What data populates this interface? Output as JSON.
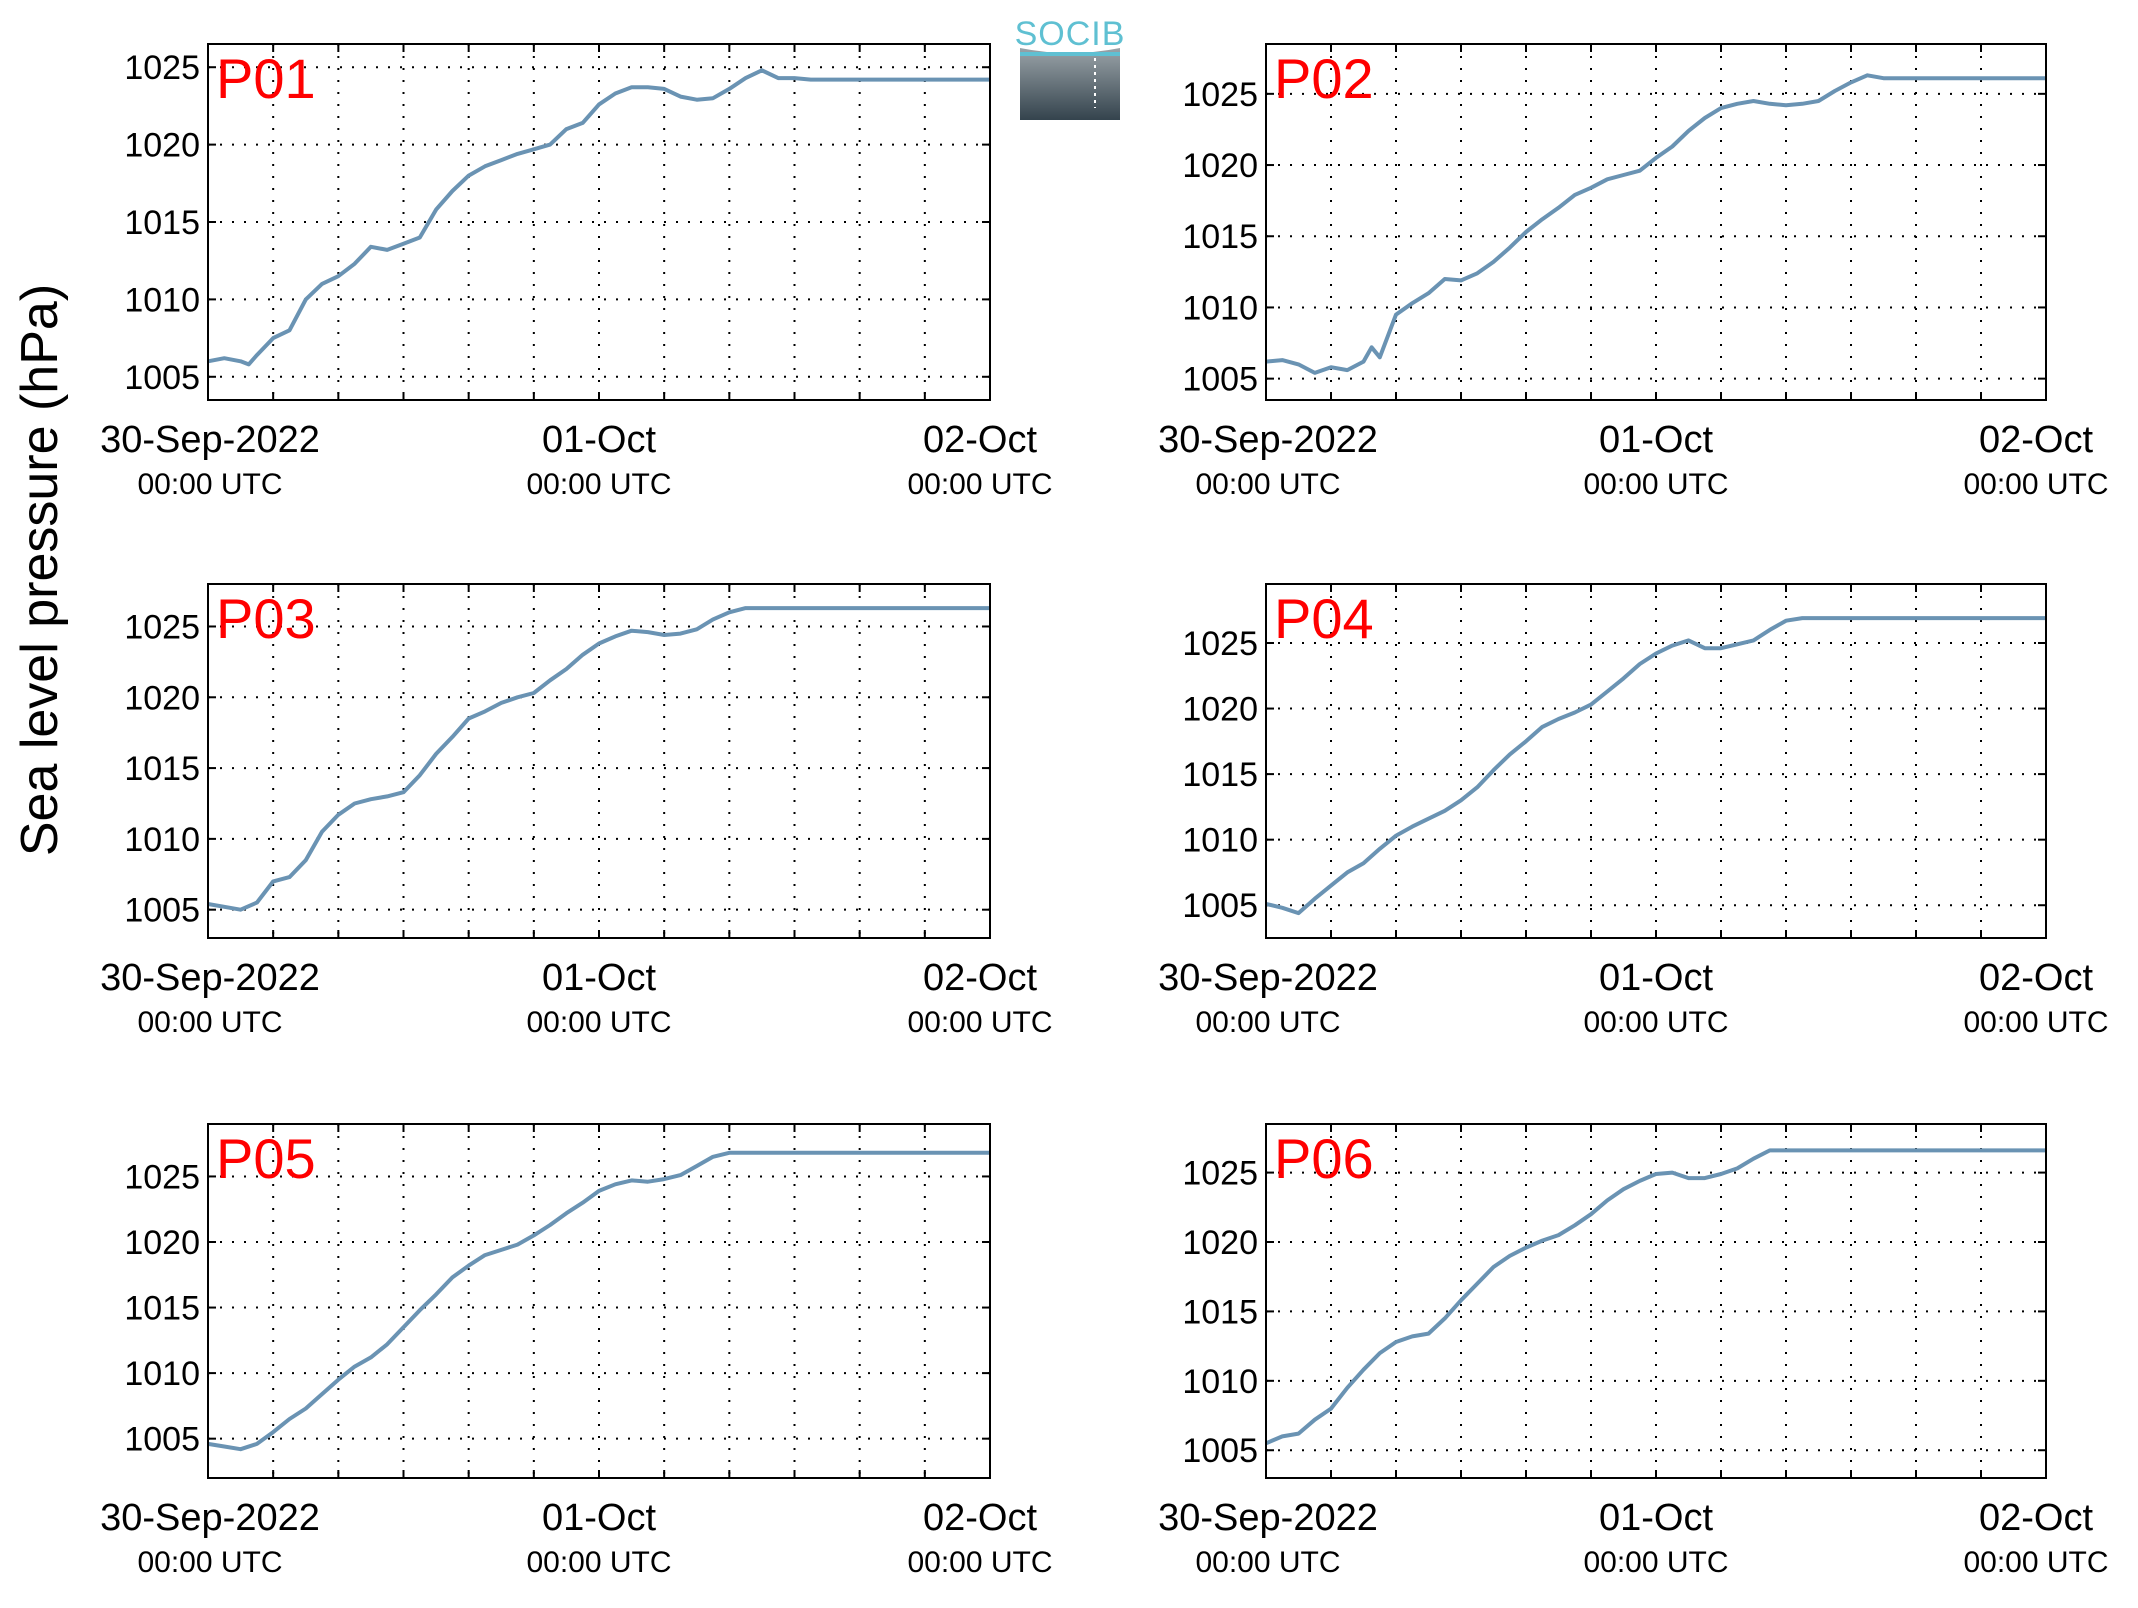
{
  "figure": {
    "ylabel": "Sea level pressure (hPa)",
    "logo": {
      "text": "SOCIB",
      "color": "#5fc0d2"
    },
    "line_color": "#6a93b3",
    "label_color": "#ff0000"
  },
  "chart_data": [
    {
      "type": "line",
      "label": "P01",
      "x_ticks": [
        {
          "date": "30-Sep-2022",
          "time": "00:00 UTC"
        },
        {
          "date": "01-Oct",
          "time": "00:00 UTC"
        },
        {
          "date": "02-Oct",
          "time": "00:00 UTC"
        }
      ],
      "xlim_hours": [
        0,
        48
      ],
      "ylim": [
        1003.5,
        1026.5
      ],
      "y_ticks": [
        1005,
        1010,
        1015,
        1020,
        1025
      ],
      "grid": true,
      "x_hours": [
        0,
        1,
        2,
        2.5,
        3,
        4,
        5,
        6,
        7,
        8,
        9,
        10,
        11,
        12,
        13,
        14,
        15,
        16,
        17,
        18,
        19,
        20,
        21,
        22,
        23,
        24,
        25,
        26,
        27,
        28,
        29,
        30,
        31,
        32,
        33,
        34,
        35,
        36,
        37,
        38,
        39,
        40,
        41,
        42,
        43,
        44,
        45,
        46,
        47,
        48
      ],
      "y": [
        1006.0,
        1006.2,
        1006.0,
        1005.8,
        1006.4,
        1007.5,
        1008.0,
        1010.0,
        1011.0,
        1011.5,
        1012.3,
        1013.4,
        1013.2,
        1013.6,
        1014.0,
        1015.8,
        1017.0,
        1018.0,
        1018.6,
        1019.0,
        1019.4,
        1019.7,
        1020.0,
        1021.0,
        1021.4,
        1022.6,
        1023.3,
        1023.7,
        1023.7,
        1023.6,
        1023.1,
        1022.9,
        1023.0,
        1023.6,
        1024.3,
        1024.8,
        1024.3,
        1024.3,
        1024.2,
        1024.2,
        1024.2,
        1024.2,
        1024.2,
        1024.2,
        1024.2,
        1024.2,
        1024.2,
        1024.2,
        1024.2,
        1024.2
      ]
    },
    {
      "type": "line",
      "label": "P02",
      "x_ticks": [
        {
          "date": "30-Sep-2022",
          "time": "00:00 UTC"
        },
        {
          "date": "01-Oct",
          "time": "00:00 UTC"
        },
        {
          "date": "02-Oct",
          "time": "00:00 UTC"
        }
      ],
      "xlim_hours": [
        0,
        48
      ],
      "ylim": [
        1003.5,
        1028.5
      ],
      "y_ticks": [
        1005,
        1010,
        1015,
        1020,
        1025
      ],
      "grid": true,
      "x_hours": [
        0,
        1,
        2,
        3,
        4,
        5,
        6,
        6.5,
        7,
        8,
        9,
        10,
        11,
        12,
        13,
        14,
        15,
        16,
        17,
        18,
        19,
        20,
        21,
        22,
        23,
        24,
        25,
        26,
        27,
        28,
        29,
        30,
        31,
        32,
        33,
        34,
        35,
        36,
        37,
        38,
        39,
        40,
        41,
        42,
        43,
        44,
        45,
        46,
        47,
        48
      ],
      "y": [
        1006.2,
        1006.3,
        1006.0,
        1005.4,
        1005.8,
        1005.6,
        1006.2,
        1007.2,
        1006.5,
        1009.5,
        1010.3,
        1011.0,
        1012.0,
        1011.9,
        1012.4,
        1013.2,
        1014.2,
        1015.3,
        1016.2,
        1017.0,
        1017.9,
        1018.4,
        1019.0,
        1019.3,
        1019.6,
        1020.5,
        1021.3,
        1022.4,
        1023.3,
        1024.0,
        1024.3,
        1024.5,
        1024.3,
        1024.2,
        1024.3,
        1024.5,
        1025.2,
        1025.8,
        1026.3,
        1026.1,
        1026.1,
        1026.1,
        1026.1,
        1026.1,
        1026.1,
        1026.1,
        1026.1,
        1026.1,
        1026.1,
        1026.1
      ]
    },
    {
      "type": "line",
      "label": "P03",
      "x_ticks": [
        {
          "date": "30-Sep-2022",
          "time": "00:00 UTC"
        },
        {
          "date": "01-Oct",
          "time": "00:00 UTC"
        },
        {
          "date": "02-Oct",
          "time": "00:00 UTC"
        }
      ],
      "xlim_hours": [
        0,
        48
      ],
      "ylim": [
        1003.0,
        1028.0
      ],
      "y_ticks": [
        1005,
        1010,
        1015,
        1020,
        1025
      ],
      "grid": true,
      "x_hours": [
        0,
        1,
        2,
        3,
        4,
        5,
        6,
        7,
        8,
        9,
        10,
        11,
        12,
        13,
        14,
        15,
        16,
        17,
        18,
        19,
        20,
        21,
        22,
        23,
        24,
        25,
        26,
        27,
        28,
        29,
        30,
        31,
        32,
        33,
        34,
        35,
        36,
        37,
        38,
        39,
        40,
        41,
        42,
        43,
        44,
        45,
        46,
        47,
        48
      ],
      "y": [
        1005.4,
        1005.2,
        1005.0,
        1005.5,
        1007.0,
        1007.3,
        1008.5,
        1010.5,
        1011.7,
        1012.5,
        1012.8,
        1013.0,
        1013.3,
        1014.5,
        1016.0,
        1017.2,
        1018.5,
        1019.0,
        1019.6,
        1020.0,
        1020.3,
        1021.2,
        1022.0,
        1023.0,
        1023.8,
        1024.3,
        1024.7,
        1024.6,
        1024.4,
        1024.5,
        1024.8,
        1025.5,
        1026.0,
        1026.3,
        1026.3,
        1026.3,
        1026.3,
        1026.3,
        1026.3,
        1026.3,
        1026.3,
        1026.3,
        1026.3,
        1026.3,
        1026.3,
        1026.3,
        1026.3,
        1026.3,
        1026.3
      ]
    },
    {
      "type": "line",
      "label": "P04",
      "x_ticks": [
        {
          "date": "30-Sep-2022",
          "time": "00:00 UTC"
        },
        {
          "date": "01-Oct",
          "time": "00:00 UTC"
        },
        {
          "date": "02-Oct",
          "time": "00:00 UTC"
        }
      ],
      "xlim_hours": [
        0,
        48
      ],
      "ylim": [
        1002.5,
        1029.5
      ],
      "y_ticks": [
        1005,
        1010,
        1015,
        1020,
        1025
      ],
      "grid": true,
      "x_hours": [
        0,
        1,
        2,
        3,
        4,
        5,
        6,
        7,
        8,
        9,
        10,
        11,
        12,
        13,
        14,
        15,
        16,
        17,
        18,
        19,
        20,
        21,
        22,
        23,
        24,
        25,
        26,
        27,
        28,
        29,
        30,
        31,
        32,
        33,
        34,
        35,
        36,
        37,
        38,
        39,
        40,
        41,
        42,
        43,
        44,
        45,
        46,
        47,
        48
      ],
      "y": [
        1005.1,
        1004.8,
        1004.4,
        1005.5,
        1006.5,
        1007.5,
        1008.2,
        1009.3,
        1010.3,
        1011.0,
        1011.6,
        1012.2,
        1013.0,
        1014.0,
        1015.3,
        1016.5,
        1017.5,
        1018.6,
        1019.2,
        1019.7,
        1020.3,
        1021.3,
        1022.3,
        1023.4,
        1024.2,
        1024.8,
        1025.2,
        1024.6,
        1024.6,
        1024.9,
        1025.2,
        1026.0,
        1026.7,
        1026.9,
        1026.9,
        1026.9,
        1026.9,
        1026.9,
        1026.9,
        1026.9,
        1026.9,
        1026.9,
        1026.9,
        1026.9,
        1026.9,
        1026.9,
        1026.9,
        1026.9,
        1026.9
      ]
    },
    {
      "type": "line",
      "label": "P05",
      "x_ticks": [
        {
          "date": "30-Sep-2022",
          "time": "00:00 UTC"
        },
        {
          "date": "01-Oct",
          "time": "00:00 UTC"
        },
        {
          "date": "02-Oct",
          "time": "00:00 UTC"
        }
      ],
      "xlim_hours": [
        0,
        48
      ],
      "ylim": [
        1002.0,
        1029.0
      ],
      "y_ticks": [
        1005,
        1010,
        1015,
        1020,
        1025
      ],
      "grid": true,
      "x_hours": [
        0,
        1,
        2,
        3,
        4,
        5,
        6,
        7,
        8,
        9,
        10,
        11,
        12,
        13,
        14,
        15,
        16,
        17,
        18,
        19,
        20,
        21,
        22,
        23,
        24,
        25,
        26,
        27,
        28,
        29,
        30,
        31,
        32,
        33,
        34,
        35,
        36,
        37,
        38,
        39,
        40,
        41,
        42,
        43,
        44,
        45,
        46,
        47,
        48
      ],
      "y": [
        1004.6,
        1004.4,
        1004.2,
        1004.6,
        1005.5,
        1006.5,
        1007.3,
        1008.4,
        1009.5,
        1010.5,
        1011.2,
        1012.2,
        1013.5,
        1014.8,
        1016.0,
        1017.3,
        1018.2,
        1019.0,
        1019.4,
        1019.8,
        1020.5,
        1021.3,
        1022.2,
        1023.0,
        1023.9,
        1024.4,
        1024.7,
        1024.6,
        1024.8,
        1025.1,
        1025.8,
        1026.5,
        1026.8,
        1026.8,
        1026.8,
        1026.8,
        1026.8,
        1026.8,
        1026.8,
        1026.8,
        1026.8,
        1026.8,
        1026.8,
        1026.8,
        1026.8,
        1026.8,
        1026.8,
        1026.8,
        1026.8
      ]
    },
    {
      "type": "line",
      "label": "P06",
      "x_ticks": [
        {
          "date": "30-Sep-2022",
          "time": "00:00 UTC"
        },
        {
          "date": "01-Oct",
          "time": "00:00 UTC"
        },
        {
          "date": "02-Oct",
          "time": "00:00 UTC"
        }
      ],
      "xlim_hours": [
        0,
        48
      ],
      "ylim": [
        1003.0,
        1028.5
      ],
      "y_ticks": [
        1005,
        1010,
        1015,
        1020,
        1025
      ],
      "grid": true,
      "x_hours": [
        0,
        1,
        2,
        3,
        4,
        5,
        6,
        7,
        8,
        9,
        10,
        11,
        12,
        13,
        14,
        15,
        16,
        17,
        18,
        19,
        20,
        21,
        22,
        23,
        24,
        25,
        26,
        27,
        28,
        29,
        30,
        31,
        32,
        33,
        34,
        35,
        36,
        37,
        38,
        39,
        40,
        41,
        42,
        43,
        44,
        45,
        46,
        47,
        48
      ],
      "y": [
        1005.5,
        1006.0,
        1006.2,
        1007.2,
        1008.0,
        1009.5,
        1010.8,
        1012.0,
        1012.8,
        1013.2,
        1013.4,
        1014.5,
        1015.8,
        1017.0,
        1018.2,
        1019.0,
        1019.6,
        1020.1,
        1020.5,
        1021.2,
        1022.0,
        1023.0,
        1023.8,
        1024.4,
        1024.9,
        1025.0,
        1024.6,
        1024.6,
        1024.9,
        1025.3,
        1026.0,
        1026.6,
        1026.6,
        1026.6,
        1026.6,
        1026.6,
        1026.6,
        1026.6,
        1026.6,
        1026.6,
        1026.6,
        1026.6,
        1026.6,
        1026.6,
        1026.6,
        1026.6,
        1026.6,
        1026.6,
        1026.6
      ]
    }
  ]
}
